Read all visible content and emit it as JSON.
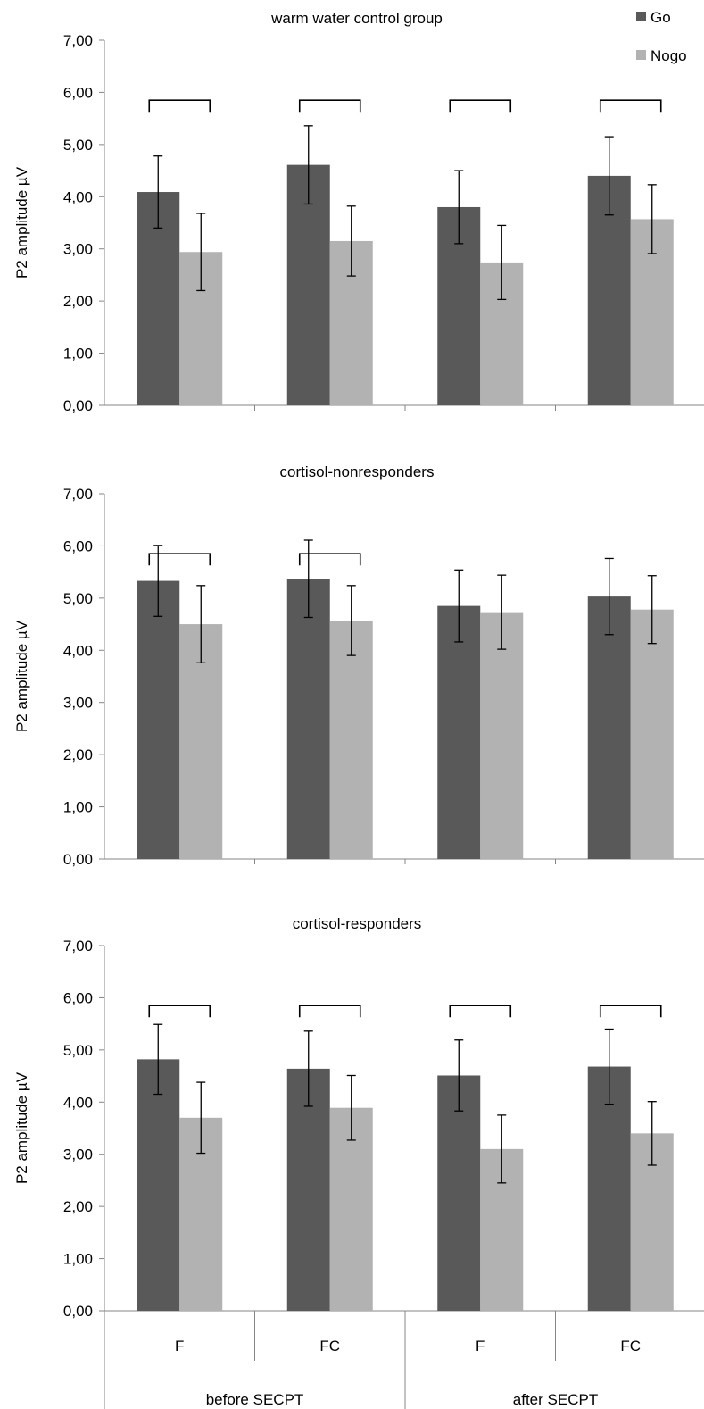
{
  "legend": {
    "position": "top-right",
    "items": [
      {
        "label": "Go",
        "color": "#595959"
      },
      {
        "label": "Nogo",
        "color": "#b2b2b2"
      }
    ]
  },
  "x_categories": [
    "F",
    "FC",
    "F",
    "FC"
  ],
  "x_groups": [
    {
      "label": "before SECPT",
      "span": [
        0,
        1
      ]
    },
    {
      "label": "after SECPT",
      "span": [
        2,
        3
      ]
    }
  ],
  "chart_data": [
    {
      "type": "bar",
      "title": "warm water control group",
      "ylabel": "P2 amplitude µV",
      "ylim": [
        0,
        7
      ],
      "yticks": [
        "0,00",
        "1,00",
        "2,00",
        "3,00",
        "4,00",
        "5,00",
        "6,00",
        "7,00"
      ],
      "categories": [
        "F",
        "FC",
        "F",
        "FC"
      ],
      "series": [
        {
          "name": "Go",
          "values": [
            4.09,
            4.61,
            3.8,
            4.4
          ],
          "errors": [
            0.69,
            0.75,
            0.7,
            0.75
          ]
        },
        {
          "name": "Nogo",
          "values": [
            2.94,
            3.15,
            2.74,
            3.57
          ],
          "errors": [
            0.74,
            0.67,
            0.71,
            0.66
          ]
        }
      ],
      "significance_brackets": [
        0,
        1,
        2,
        3
      ]
    },
    {
      "type": "bar",
      "title": "cortisol-nonresponders",
      "ylabel": "P2 amplitude µV",
      "ylim": [
        0,
        7
      ],
      "yticks": [
        "0,00",
        "1,00",
        "2,00",
        "3,00",
        "4,00",
        "5,00",
        "6,00",
        "7,00"
      ],
      "categories": [
        "F",
        "FC",
        "F",
        "FC"
      ],
      "series": [
        {
          "name": "Go",
          "values": [
            5.33,
            5.37,
            4.85,
            5.03
          ],
          "errors": [
            0.68,
            0.74,
            0.69,
            0.73
          ]
        },
        {
          "name": "Nogo",
          "values": [
            4.5,
            4.57,
            4.73,
            4.78
          ],
          "errors": [
            0.74,
            0.67,
            0.71,
            0.65
          ]
        }
      ],
      "significance_brackets": [
        0,
        1
      ]
    },
    {
      "type": "bar",
      "title": "cortisol-responders",
      "ylabel": "P2 amplitude µV",
      "ylim": [
        0,
        7
      ],
      "yticks": [
        "0,00",
        "1,00",
        "2,00",
        "3,00",
        "4,00",
        "5,00",
        "6,00",
        "7,00"
      ],
      "categories": [
        "F",
        "FC",
        "F",
        "FC"
      ],
      "series": [
        {
          "name": "Go",
          "values": [
            4.82,
            4.64,
            4.51,
            4.68
          ],
          "errors": [
            0.67,
            0.72,
            0.68,
            0.72
          ]
        },
        {
          "name": "Nogo",
          "values": [
            3.7,
            3.89,
            3.1,
            3.4
          ],
          "errors": [
            0.68,
            0.62,
            0.65,
            0.61
          ]
        }
      ],
      "significance_brackets": [
        0,
        1,
        2,
        3
      ]
    }
  ]
}
